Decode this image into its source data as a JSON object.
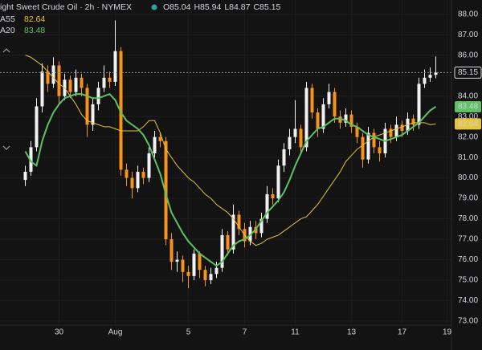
{
  "chart_data": {
    "type": "candlestick",
    "title": "ight Sweet Crude Oil · 2h · NYMEX",
    "ohlc_labels": [
      {
        "value": 85.04,
        "label": "O85.04"
      },
      {
        "value": 85.94,
        "label": "H85.94"
      },
      {
        "value": 84.87,
        "label": "L84.87"
      },
      {
        "value": 85.15,
        "label": "C85.15"
      }
    ],
    "up_color": "#f2f2f2",
    "down_color": "#f7931a",
    "last_price": 85.15,
    "categories": [
      null,
      null,
      null,
      null,
      null,
      null,
      null,
      null,
      null,
      null,
      "30",
      null,
      null,
      null,
      null,
      null,
      null,
      null,
      null,
      null,
      "Aug",
      null,
      null,
      null,
      null,
      null,
      null,
      null,
      null,
      null,
      null,
      null,
      null,
      "5",
      null,
      null,
      null,
      null,
      null,
      null,
      null,
      null,
      null,
      "7",
      null,
      null,
      null,
      null,
      null,
      null,
      null,
      null,
      "11",
      null,
      null,
      null,
      null,
      null,
      null,
      null,
      null,
      null,
      "13",
      null,
      null,
      null,
      null,
      null,
      null,
      null,
      null,
      "17",
      null,
      null,
      null,
      null,
      null,
      null,
      null,
      "19"
    ],
    "open": [
      null,
      null,
      null,
      null,
      79.9,
      80.3,
      81.5,
      83.5,
      85.2,
      84.6,
      85.5,
      84.0,
      84.8,
      84.2,
      84.9,
      84.4,
      82.6,
      83.6,
      84.4,
      84.9,
      84.7,
      86.2,
      80.4,
      80.0,
      79.5,
      80.3,
      80.0,
      81.2,
      82.0,
      81.8,
      77.0,
      75.9,
      76.0,
      75.4,
      75.2,
      76.3,
      75.5,
      75.0,
      75.3,
      75.6,
      77.2,
      76.5,
      78.2,
      77.5,
      76.9,
      77.6,
      77.3,
      78.0,
      79.2,
      79.0,
      80.6,
      81.4,
      82.0,
      82.4,
      81.5,
      84.4,
      83.2,
      82.4,
      83.6,
      84.2,
      83.0,
      82.7,
      83.1,
      82.5,
      82.0,
      80.9,
      82.2,
      81.5,
      81.2,
      82.4,
      82.0,
      82.6,
      82.3,
      82.9,
      82.6,
      84.6,
      84.9,
      85.04,
      null,
      null
    ],
    "high": [
      null,
      null,
      null,
      null,
      80.6,
      81.8,
      83.9,
      85.6,
      85.5,
      85.9,
      85.7,
      85.1,
      85.0,
      85.3,
      85.1,
      84.6,
      83.9,
      84.7,
      85.5,
      85.2,
      87.7,
      86.4,
      80.7,
      80.3,
      80.6,
      80.5,
      81.5,
      82.3,
      82.2,
      82.0,
      77.3,
      76.4,
      76.2,
      75.7,
      76.5,
      76.4,
      75.7,
      75.6,
      75.9,
      77.5,
      77.4,
      78.7,
      78.4,
      77.8,
      77.9,
      77.9,
      78.3,
      79.6,
      79.5,
      80.9,
      81.7,
      82.4,
      83.8,
      82.6,
      84.7,
      84.6,
      83.4,
      83.9,
      84.6,
      84.4,
      83.3,
      83.4,
      83.3,
      82.7,
      82.2,
      82.5,
      82.4,
      81.8,
      82.7,
      82.6,
      83.0,
      82.8,
      83.2,
      83.1,
      84.9,
      85.3,
      85.4,
      85.94,
      null,
      null
    ],
    "low": [
      null,
      null,
      null,
      null,
      79.6,
      80.1,
      81.3,
      83.2,
      84.2,
      84.4,
      83.6,
      83.8,
      83.9,
      84.0,
      84.0,
      82.0,
      82.3,
      83.3,
      84.2,
      84.4,
      84.5,
      80.1,
      79.6,
      79.0,
      79.3,
      79.7,
      79.8,
      81.0,
      81.5,
      76.7,
      75.5,
      75.4,
      74.9,
      74.6,
      75.0,
      75.1,
      74.7,
      74.8,
      75.1,
      75.4,
      76.2,
      76.3,
      77.2,
      76.6,
      76.7,
      77.0,
      77.1,
      77.8,
      78.7,
      78.8,
      80.3,
      81.1,
      81.7,
      81.2,
      81.3,
      82.9,
      82.0,
      82.2,
      83.4,
      82.7,
      82.4,
      82.5,
      82.2,
      81.7,
      80.5,
      80.7,
      81.2,
      80.8,
      81.0,
      81.7,
      81.8,
      82.0,
      82.1,
      82.3,
      82.4,
      84.4,
      84.7,
      84.87,
      null,
      null
    ],
    "close": [
      null,
      null,
      null,
      null,
      80.3,
      81.5,
      83.5,
      85.2,
      84.6,
      85.5,
      84.0,
      84.8,
      84.2,
      84.9,
      84.4,
      82.6,
      83.6,
      84.4,
      84.9,
      84.7,
      86.2,
      80.4,
      80.0,
      79.5,
      80.3,
      80.0,
      81.2,
      82.0,
      81.8,
      77.0,
      75.9,
      76.0,
      75.4,
      75.2,
      76.3,
      75.5,
      75.0,
      75.3,
      75.6,
      77.2,
      76.5,
      78.2,
      77.5,
      76.9,
      77.6,
      77.3,
      78.0,
      79.2,
      79.0,
      80.6,
      81.4,
      82.0,
      82.4,
      81.5,
      84.4,
      83.2,
      82.4,
      83.6,
      84.2,
      83.0,
      82.7,
      83.1,
      82.5,
      82.0,
      80.9,
      82.2,
      81.5,
      81.2,
      82.4,
      82.0,
      82.6,
      82.3,
      82.9,
      82.6,
      84.6,
      84.9,
      85.04,
      85.15,
      null,
      null
    ],
    "series": [
      {
        "name": "A55",
        "color": "#e9c33a",
        "last": 82.64,
        "values": [
          null,
          null,
          null,
          null,
          86.0,
          85.9,
          85.7,
          85.5,
          85.2,
          84.9,
          84.6,
          84.4,
          84.0,
          83.6,
          83.1,
          82.8,
          82.7,
          82.6,
          82.5,
          82.5,
          82.4,
          82.3,
          82.3,
          82.3,
          82.3,
          82.5,
          82.8,
          82.8,
          82.2,
          81.4,
          81.0,
          80.6,
          80.3,
          80.0,
          79.8,
          79.5,
          79.2,
          79.0,
          78.7,
          78.5,
          78.3,
          78.0,
          77.6,
          77.2,
          76.9,
          76.7,
          76.8,
          77.0,
          77.1,
          77.2,
          77.4,
          77.6,
          77.8,
          78.0,
          78.1,
          78.4,
          78.7,
          79.1,
          79.5,
          79.9,
          80.3,
          80.8,
          81.1,
          81.4,
          81.6,
          81.8,
          82.0,
          82.1,
          82.2,
          82.3,
          82.4,
          82.5,
          82.6,
          82.7,
          82.7,
          82.7,
          82.6,
          82.64,
          null,
          null
        ]
      },
      {
        "name": "A20",
        "color": "#5fc163",
        "last": 83.48,
        "values": [
          null,
          null,
          null,
          null,
          81.3,
          80.8,
          80.6,
          81.8,
          82.6,
          83.2,
          83.6,
          83.9,
          84.0,
          84.1,
          84.1,
          84.0,
          83.9,
          83.9,
          84.0,
          84.1,
          83.8,
          83.2,
          82.8,
          82.6,
          82.4,
          82.1,
          81.6,
          80.9,
          80.2,
          79.2,
          78.3,
          77.8,
          77.3,
          76.9,
          76.6,
          76.3,
          76.1,
          75.9,
          75.7,
          75.9,
          76.3,
          76.7,
          76.9,
          77.0,
          77.2,
          77.5,
          77.9,
          78.3,
          78.6,
          78.9,
          79.3,
          79.9,
          80.6,
          81.2,
          81.8,
          82.1,
          82.4,
          82.5,
          82.7,
          82.9,
          82.9,
          82.8,
          82.6,
          82.5,
          82.3,
          82.1,
          82.0,
          81.9,
          81.8,
          81.9,
          82.0,
          82.1,
          82.3,
          82.5,
          82.7,
          83.0,
          83.3,
          83.48,
          null,
          null
        ]
      }
    ],
    "ylim": [
      72.8,
      88.7
    ],
    "yticks": [
      {
        "value": 73,
        "label": "73.00"
      },
      {
        "value": 74,
        "label": "74.00"
      },
      {
        "value": 75,
        "label": "75.00"
      },
      {
        "value": 76,
        "label": "76.00"
      },
      {
        "value": 77,
        "label": "77.00"
      },
      {
        "value": 78,
        "label": "78.00"
      },
      {
        "value": 79,
        "label": "79.00"
      },
      {
        "value": 80,
        "label": "80.00"
      },
      {
        "value": 81,
        "label": "81.00"
      },
      {
        "value": 82,
        "label": "82.00"
      },
      {
        "value": 83,
        "label": "83.00"
      },
      {
        "value": 84,
        "label": "84.00"
      },
      {
        "value": 85,
        "label": "85.00"
      },
      {
        "value": 86,
        "label": "86.00"
      },
      {
        "value": 87,
        "label": "87.00"
      },
      {
        "value": 88,
        "label": "88.00"
      }
    ],
    "grid": true
  }
}
